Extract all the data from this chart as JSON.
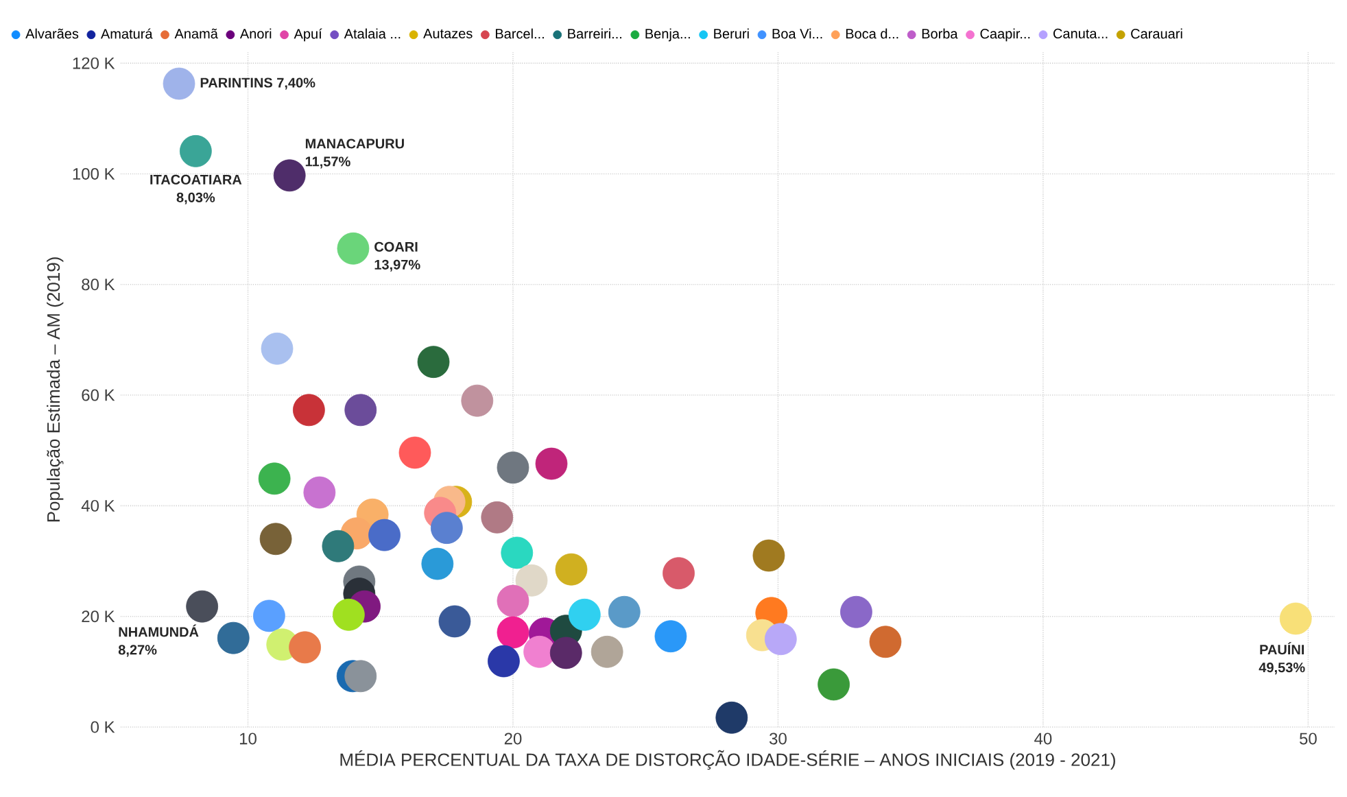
{
  "chart_data": {
    "type": "scatter",
    "xlabel": "MÉDIA PERCENTUAL DA TAXA DE DISTORÇÃO IDADE-SÉRIE – ANOS INICIAIS (2019 - 2021)",
    "ylabel": "População Estimada – AM (2019)",
    "xlim": [
      5.2,
      51
    ],
    "xticks": [
      10,
      20,
      30,
      40,
      50
    ],
    "ylim": [
      0,
      122
    ],
    "yticks": [
      {
        "value": 0,
        "label": "0 K"
      },
      {
        "value": 20,
        "label": "20 K"
      },
      {
        "value": 40,
        "label": "40 K"
      },
      {
        "value": 60,
        "label": "60 K"
      },
      {
        "value": 80,
        "label": "80 K"
      },
      {
        "value": 100,
        "label": "100 K"
      },
      {
        "value": 120,
        "label": "120 K"
      }
    ],
    "grid": true,
    "legend": "top left",
    "series": [
      {
        "x": [
          7.4,
          8.03,
          11.57,
          13.97,
          11.1,
          17.0,
          18.65,
          12.3,
          14.25,
          16.3,
          20.0,
          21.45,
          11.0,
          12.7,
          17.85,
          17.6,
          17.25,
          19.4,
          14.7,
          11.05,
          14.1,
          15.15,
          13.4,
          17.5,
          17.15,
          20.15,
          22.2,
          20.7,
          14.2,
          14.2,
          14.4,
          13.8,
          8.27,
          10.8,
          9.45,
          11.3,
          12.15,
          13.95,
          14.25,
          17.8,
          20.0,
          20.0,
          19.65,
          21.2,
          21.0,
          22.0,
          22.0,
          22.7,
          24.2,
          23.55,
          26.25,
          25.95,
          28.25,
          29.65,
          29.75,
          29.4,
          30.1,
          32.95,
          34.05,
          32.1,
          49.53
        ],
        "values": [
          116.3,
          104.1,
          99.7,
          86.5,
          68.4,
          66.0,
          59.0,
          57.3,
          57.3,
          49.6,
          46.9,
          47.6,
          44.9,
          42.4,
          40.7,
          40.7,
          38.7,
          37.9,
          38.4,
          34.0,
          35.0,
          34.7,
          32.7,
          36.0,
          29.5,
          31.5,
          28.5,
          26.5,
          26.3,
          24.1,
          21.8,
          20.3,
          21.8,
          20.1,
          16.1,
          14.9,
          14.4,
          9.2,
          9.2,
          19.1,
          22.8,
          17.1,
          11.9,
          16.9,
          13.6,
          17.4,
          13.4,
          20.3,
          20.8,
          13.6,
          27.8,
          16.4,
          1.7,
          31.0,
          20.6,
          16.6,
          15.9,
          20.8,
          15.4,
          7.7,
          19.6
        ],
        "colors": [
          "#9fb3ea",
          "#3aa597",
          "#4f2d6a",
          "#6ad57a",
          "#a9c0ef",
          "#2a6b3d",
          "#c0929e",
          "#c83238",
          "#6b4c9a",
          "#ff5a5a",
          "#6f7780",
          "#c0257a",
          "#3cb34f",
          "#c872d0",
          "#d8b21a",
          "#f9b98a",
          "#f98a8a",
          "#b07a85",
          "#f9b068",
          "#786238",
          "#f9a868",
          "#4a6cc8",
          "#2f7a7a",
          "#5a80d0",
          "#2a9ad8",
          "#2ad8c0",
          "#d0b020",
          "#e0d8c8",
          "#707880",
          "#2a3038",
          "#801a80",
          "#a0e020",
          "#4a4e5a",
          "#5aa0ff",
          "#316c98",
          "#d0f070",
          "#e87a4a",
          "#1a6ab0",
          "#8a929a",
          "#3a5a98",
          "#e070b8",
          "#f02090",
          "#2a38a8",
          "#a01898",
          "#f080d0",
          "#1f4a40",
          "#5a2a68",
          "#30d0f0",
          "#5a9ac8",
          "#b0a598",
          "#d85a6a",
          "#2a98f8",
          "#1f3a68",
          "#a07a20",
          "#ff7a20",
          "#f8e090",
          "#b8a8f8",
          "#8a68c8",
          "#d06a30",
          "#3a9a3a",
          "#f8e078"
        ]
      },
      {
        "name": "Alvarães",
        "color": "#118dff"
      },
      {
        "name": "Amaturá",
        "color": "#12239e"
      },
      {
        "name": "Anamã",
        "color": "#e66c37"
      },
      {
        "name": "Anori",
        "color": "#6b007b"
      },
      {
        "name": "Apuí",
        "color": "#e044a7"
      },
      {
        "name": "Atalaia ...",
        "color": "#744ec2"
      },
      {
        "name": "Autazes",
        "color": "#d9b300"
      },
      {
        "name": "Barcel...",
        "color": "#d64550"
      },
      {
        "name": "Barreiri...",
        "color": "#197278"
      },
      {
        "name": "Benja...",
        "color": "#1aab40"
      },
      {
        "name": "Beruri",
        "color": "#15c6f4"
      },
      {
        "name": "Boa Vi...",
        "color": "#4092ff"
      },
      {
        "name": "Boca d...",
        "color": "#ffa058"
      },
      {
        "name": "Borba",
        "color": "#be5dc9"
      },
      {
        "name": "Caapir...",
        "color": "#f472d0"
      },
      {
        "name": "Canuta...",
        "color": "#b5a1ff"
      },
      {
        "name": "Carauari",
        "color": "#c4a200"
      }
    ],
    "annotations": [
      {
        "text": "PARINTINS 7,40%",
        "x": 7.4,
        "y": 116.3
      },
      {
        "text": "ITACOATIARA 8,03%",
        "x": 8.03,
        "y": 104.1
      },
      {
        "text": "MANACAPURU 11,57%",
        "x": 11.57,
        "y": 99.7
      },
      {
        "text": "COARI 13,97%",
        "x": 13.97,
        "y": 86.5
      },
      {
        "text": "NHAMUNDÁ 8,27%",
        "x": 8.27,
        "y": 21.8
      },
      {
        "text": "PAUÍNI 49,53%",
        "x": 49.53,
        "y": 19.6
      }
    ]
  }
}
